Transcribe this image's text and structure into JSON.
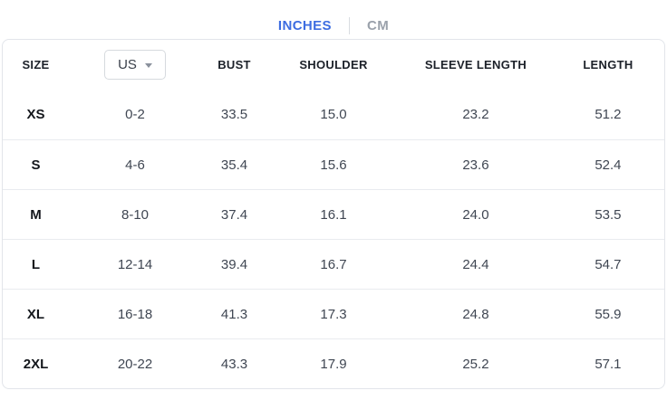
{
  "units_tabs": {
    "items": [
      {
        "label": "INCHES",
        "active": true
      },
      {
        "label": "CM",
        "active": false
      }
    ]
  },
  "table": {
    "columns": [
      "SIZE",
      "US",
      "BUST",
      "SHOULDER",
      "SLEEVE LENGTH",
      "LENGTH"
    ],
    "region_dropdown": {
      "value": "US",
      "icon": "caret-down-icon"
    },
    "rows": [
      {
        "size": "XS",
        "us": "0-2",
        "bust": "33.5",
        "shoulder": "15.0",
        "sleeve_length": "23.2",
        "length": "51.2"
      },
      {
        "size": "S",
        "us": "4-6",
        "bust": "35.4",
        "shoulder": "15.6",
        "sleeve_length": "23.6",
        "length": "52.4"
      },
      {
        "size": "M",
        "us": "8-10",
        "bust": "37.4",
        "shoulder": "16.1",
        "sleeve_length": "24.0",
        "length": "53.5"
      },
      {
        "size": "L",
        "us": "12-14",
        "bust": "39.4",
        "shoulder": "16.7",
        "sleeve_length": "24.4",
        "length": "54.7"
      },
      {
        "size": "XL",
        "us": "16-18",
        "bust": "41.3",
        "shoulder": "17.3",
        "sleeve_length": "24.8",
        "length": "55.9"
      },
      {
        "size": "2XL",
        "us": "20-22",
        "bust": "43.3",
        "shoulder": "17.9",
        "sleeve_length": "25.2",
        "length": "57.1"
      }
    ]
  },
  "colors": {
    "accent": "#3d6de1",
    "inactive_tab": "#9aa1ab",
    "table_border": "#e2e5ea",
    "row_divider": "#e9ebef",
    "header_text": "#1c2129",
    "cell_text": "#3f4652"
  }
}
